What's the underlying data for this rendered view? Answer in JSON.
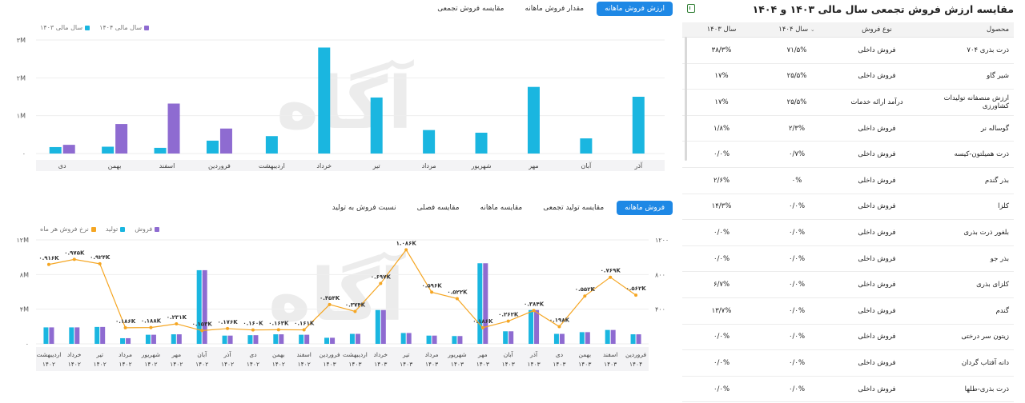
{
  "top_tabs": [
    "ارزش فروش ماهانه",
    "مقدار فروش ماهانه",
    "مقایسه فروش تجمعی"
  ],
  "top_tab_active": 0,
  "bottom_tabs": [
    "فروش ماهانه",
    "مقایسه تولید تجمعی",
    "مقایسه ماهانه",
    "مقایسه فصلی",
    "نسبت فروش به تولید"
  ],
  "bottom_tab_active": 0,
  "colors": {
    "cyan": "#1ab6e0",
    "purple": "#8e6bd1",
    "orange": "#f5a623",
    "accent": "#1e88e5"
  },
  "chart_data": [
    {
      "type": "bar",
      "title": "",
      "legend": [
        "سال مالی ۱۴۰۴",
        "سال مالی ۱۴۰۳"
      ],
      "yticks": [
        "۳M",
        "۲M",
        "۱M",
        "۰"
      ],
      "ylim": [
        0,
        3000000
      ],
      "categories": [
        "آذر",
        "آبان",
        "مهر",
        "شهریور",
        "مرداد",
        "تیر",
        "خرداد",
        "اردیبهشت",
        "فروردین",
        "اسفند",
        "بهمن",
        "دی"
      ],
      "series": [
        {
          "name": "سال مالی ۱۴۰۳",
          "values": [
            1500000,
            400000,
            1760000,
            550000,
            620000,
            1480000,
            2800000,
            460000,
            340000,
            150000,
            180000,
            170000
          ]
        },
        {
          "name": "سال مالی ۱۴۰۴",
          "values": [
            null,
            null,
            null,
            null,
            null,
            null,
            null,
            null,
            660000,
            1320000,
            780000,
            230000
          ]
        }
      ]
    },
    {
      "type": "bar",
      "title": "",
      "legend": [
        "فروش",
        "تولید",
        "نرخ فروش هر ماه"
      ],
      "yticks_left": [
        "۱۲M",
        "۸M",
        "۴M",
        "۰"
      ],
      "yticks_right": [
        "۱۲۰۰",
        "۸۰۰",
        "۴۰۰"
      ],
      "ylim_left": [
        0,
        12000000
      ],
      "ylim_right": [
        0,
        1200
      ],
      "categories": [
        [
          "اردیبهشت",
          "۱۴۰۲"
        ],
        [
          "خرداد",
          "۱۴۰۲"
        ],
        [
          "تیر",
          "۱۴۰۲"
        ],
        [
          "مرداد",
          "۱۴۰۲"
        ],
        [
          "شهریور",
          "۱۴۰۲"
        ],
        [
          "مهر",
          "۱۴۰۲"
        ],
        [
          "آبان",
          "۱۴۰۲"
        ],
        [
          "آذر",
          "۱۴۰۲"
        ],
        [
          "دی",
          "۱۴۰۲"
        ],
        [
          "بهمن",
          "۱۴۰۲"
        ],
        [
          "اسفند",
          "۱۴۰۲"
        ],
        [
          "فروردین",
          "۱۴۰۳"
        ],
        [
          "اردیبهشت",
          "۱۴۰۳"
        ],
        [
          "خرداد",
          "۱۴۰۳"
        ],
        [
          "تیر",
          "۱۴۰۳"
        ],
        [
          "مرداد",
          "۱۴۰۳"
        ],
        [
          "شهریور",
          "۱۴۰۳"
        ],
        [
          "مهر",
          "۱۴۰۳"
        ],
        [
          "آبان",
          "۱۴۰۳"
        ],
        [
          "آذر",
          "۱۴۰۳"
        ],
        [
          "دی",
          "۱۴۰۳"
        ],
        [
          "بهمن",
          "۱۴۰۳"
        ],
        [
          "اسفند",
          "۱۴۰۳"
        ],
        [
          "فروردین",
          "۱۴۰۴"
        ]
      ],
      "series": [
        {
          "name": "فروش",
          "type": "bar",
          "values": [
            1900000,
            1900000,
            1950000,
            650000,
            1050000,
            1100000,
            8500000,
            950000,
            1000000,
            1100000,
            1050000,
            700000,
            1150000,
            3900000,
            1250000,
            950000,
            900000,
            9300000,
            1450000,
            3900000,
            1150000,
            1350000,
            1600000,
            1100000
          ]
        },
        {
          "name": "تولید",
          "type": "bar",
          "values": [
            1900000,
            1900000,
            1950000,
            650000,
            1050000,
            1100000,
            8500000,
            950000,
            1000000,
            1100000,
            1050000,
            700000,
            1150000,
            3900000,
            1250000,
            950000,
            900000,
            9300000,
            1450000,
            3900000,
            1150000,
            1350000,
            1600000,
            1100000
          ]
        },
        {
          "name": "نرخ فروش هر ماه",
          "type": "line",
          "axis": "right",
          "values": [
            916,
            975,
            924,
            186,
            188,
            231,
            153,
            176,
            160,
            163,
            161,
            454,
            374,
            697,
            1086,
            596,
            522,
            186,
            262,
            384,
            198,
            552,
            769,
            562
          ]
        }
      ],
      "point_labels": [
        "۰.۹۱۶K",
        "۰.۹۷۵K",
        "۰.۹۲۴K",
        "۰.۱۸۶K",
        "۰.۱۸۸K",
        "۰.۲۳۱K",
        "۰.۱۵۳K",
        "۰.۱۷۶K",
        "۰.۱۶۰K",
        "۰.۱۶۳K",
        "۰.۱۶۱K",
        "۰.۴۵۴K",
        "۰.۳۷۴K",
        "۰.۶۹۷K",
        "۱.۰۸۶K",
        "۰.۵۹۶K",
        "۰.۵۲۲K",
        "۰.۱۸۶K",
        "۰.۲۶۲K",
        "۰.۳۸۴K",
        "۰.۱۹۸K",
        "۰.۵۵۲K",
        "۰.۷۶۹K",
        "۰.۵۶۲K"
      ]
    }
  ],
  "table": {
    "title": "مقایسه ارزش فروش تجمعی سال مالی ۱۴۰۳ و ۱۴۰۴",
    "headers": [
      "محصول",
      "نوع فروش",
      "سال ۱۴۰۴",
      "سال ۱۴۰۳"
    ],
    "rows": [
      [
        "ذرت بذری ۷۰۴",
        "فروش داخلی",
        "۷۱/۵%",
        "۳۸/۳%"
      ],
      [
        "شیر گاو",
        "فروش داخلی",
        "۲۵/۵%",
        "۱۷%"
      ],
      [
        "ارزش منصفانه تولیدات کشاورزی",
        "درآمد ارائه خدمات",
        "۲۵/۵%",
        "۱۷%"
      ],
      [
        "گوساله نر",
        "فروش داخلی",
        "۲/۳%",
        "۱/۸%"
      ],
      [
        "ذرت همیلتون-کیسه",
        "فروش داخلی",
        "۰/۷%",
        "۰/۰%"
      ],
      [
        "بذر گندم",
        "فروش داخلی",
        "۰%",
        "۲/۶%"
      ],
      [
        "کلزا",
        "فروش داخلی",
        "۰/۰%",
        "۱۴/۳%"
      ],
      [
        "بلغور ذرت بذری",
        "فروش داخلی",
        "۰/۰%",
        "۰/۰%"
      ],
      [
        "بذر جو",
        "فروش داخلی",
        "۰/۰%",
        "۰/۰%"
      ],
      [
        "کلزای بذری",
        "فروش داخلی",
        "۰/۰%",
        "۶/۷%"
      ],
      [
        "گندم",
        "فروش داخلی",
        "۰/۰%",
        "۱۳/۷%"
      ],
      [
        "زیتون سر درختی",
        "فروش داخلی",
        "۰/۰%",
        "۰/۰%"
      ],
      [
        "دانه آفتاب گردان",
        "فروش داخلی",
        "۰/۰%",
        "۰/۰%"
      ],
      [
        "ذرت بذری-طلها",
        "فروش داخلی",
        "۰/۰%",
        "۰/۰%"
      ]
    ]
  },
  "watermark": {
    "logo": "آگاه",
    "subtitle": "کارگزار بورس اوراق بهادار کالا و انرژی"
  }
}
